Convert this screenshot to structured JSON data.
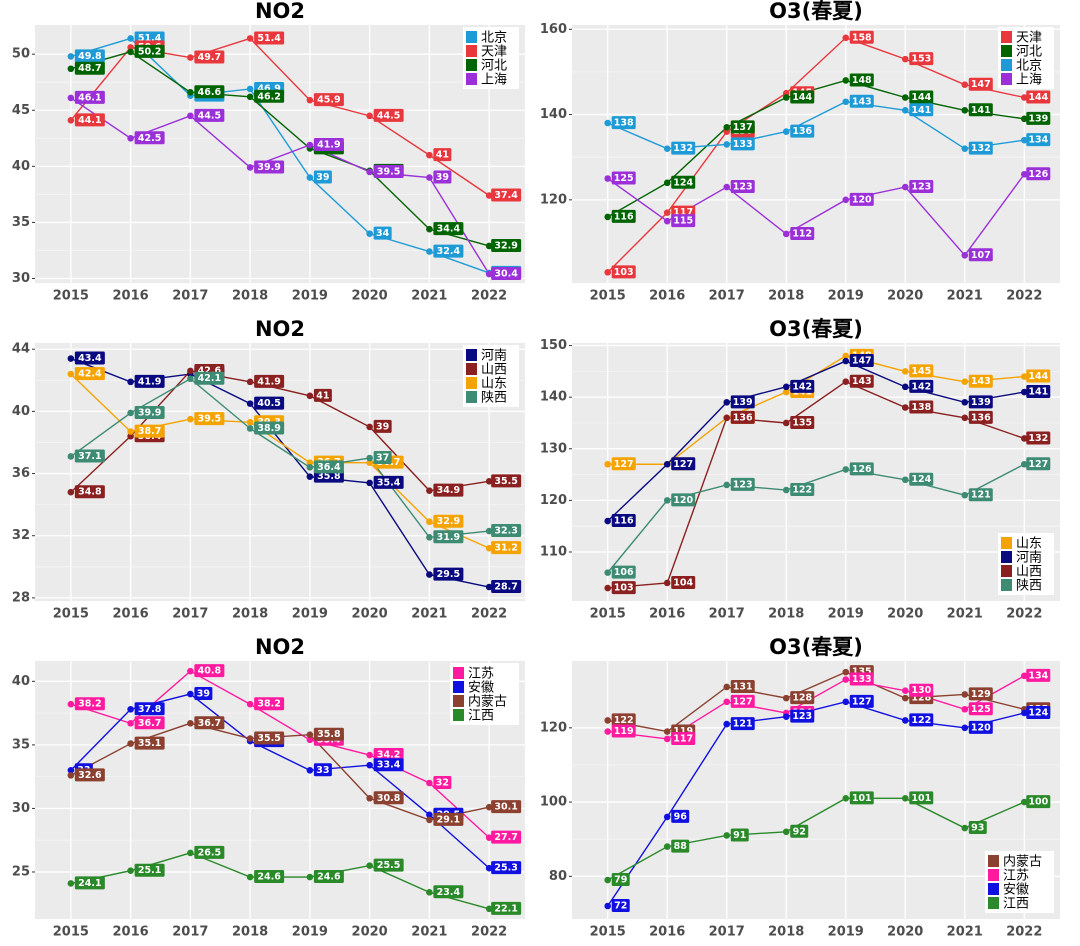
{
  "chart_data": [
    {
      "type": "line",
      "title": "NO2",
      "categories": [
        "2015",
        "2016",
        "2017",
        "2018",
        "2019",
        "2020",
        "2021",
        "2022"
      ],
      "series": [
        {
          "name": "北京",
          "color": "#1e9bd7",
          "values": [
            49.8,
            51.4,
            46.3,
            46.9,
            39,
            34,
            32.4,
            30.5
          ]
        },
        {
          "name": "天津",
          "color": "#e8383d",
          "values": [
            44.1,
            50.6,
            49.7,
            51.4,
            45.9,
            44.5,
            41,
            37.4
          ]
        },
        {
          "name": "河北",
          "color": "#006400",
          "values": [
            48.7,
            50.2,
            46.6,
            46.2,
            41.6,
            39.6,
            34.4,
            32.9
          ]
        },
        {
          "name": "上海",
          "color": "#9b30d9",
          "values": [
            46.1,
            42.5,
            44.5,
            39.9,
            41.9,
            39.5,
            39,
            30.4
          ]
        }
      ],
      "ylim": [
        29.6,
        52.6
      ],
      "yticks": [
        30,
        35,
        40,
        45,
        50
      ],
      "grid": true,
      "legend": "top-right"
    },
    {
      "type": "line",
      "title": "O3(春夏)",
      "categories": [
        "2015",
        "2016",
        "2017",
        "2018",
        "2019",
        "2020",
        "2021",
        "2022"
      ],
      "series": [
        {
          "name": "天津",
          "color": "#e8383d",
          "values": [
            103,
            117,
            136,
            145,
            158,
            153,
            147,
            144
          ]
        },
        {
          "name": "河北",
          "color": "#006400",
          "values": [
            116,
            124,
            137,
            144,
            148,
            144,
            141,
            139
          ]
        },
        {
          "name": "北京",
          "color": "#1e9bd7",
          "values": [
            138,
            132,
            133,
            136,
            143,
            141,
            132,
            134
          ]
        },
        {
          "name": "上海",
          "color": "#9b30d9",
          "values": [
            125,
            115,
            123,
            112,
            120,
            123,
            107,
            126
          ]
        }
      ],
      "ylim": [
        100.5,
        161
      ],
      "yticks": [
        120,
        140,
        160
      ],
      "grid": true,
      "legend": "top-right"
    },
    {
      "type": "line",
      "title": "NO2",
      "categories": [
        "2015",
        "2016",
        "2017",
        "2018",
        "2019",
        "2020",
        "2021",
        "2022"
      ],
      "series": [
        {
          "name": "河南",
          "color": "#0a0a80",
          "values": [
            43.4,
            41.9,
            42.4,
            40.5,
            35.8,
            35.4,
            29.5,
            28.7
          ]
        },
        {
          "name": "山西",
          "color": "#8b2020",
          "values": [
            34.8,
            38.4,
            42.6,
            41.9,
            41,
            39,
            34.9,
            35.5
          ]
        },
        {
          "name": "山东",
          "color": "#f5a300",
          "values": [
            42.4,
            38.7,
            39.5,
            39.3,
            36.7,
            36.7,
            32.9,
            31.2
          ]
        },
        {
          "name": "陕西",
          "color": "#3d8b73",
          "values": [
            37.1,
            39.9,
            42.1,
            38.9,
            36.4,
            37,
            31.9,
            32.3
          ]
        }
      ],
      "ylim": [
        27.8,
        44.4
      ],
      "yticks": [
        28,
        32,
        36,
        40,
        44
      ],
      "grid": true,
      "legend": "top-right"
    },
    {
      "type": "line",
      "title": "O3(春夏)",
      "categories": [
        "2015",
        "2016",
        "2017",
        "2018",
        "2019",
        "2020",
        "2021",
        "2022"
      ],
      "series": [
        {
          "name": "山东",
          "color": "#f5a300",
          "values": [
            127,
            127,
            136,
            141,
            148,
            145,
            143,
            144
          ]
        },
        {
          "name": "河南",
          "color": "#0a0a80",
          "values": [
            116,
            127,
            139,
            142,
            147,
            142,
            139,
            141
          ]
        },
        {
          "name": "山西",
          "color": "#8b2020",
          "values": [
            103,
            104,
            136,
            135,
            143,
            138,
            136,
            132
          ]
        },
        {
          "name": "陕西",
          "color": "#3d8b73",
          "values": [
            106,
            120,
            123,
            122,
            126,
            124,
            121,
            127
          ]
        }
      ],
      "ylim": [
        100.5,
        150.5
      ],
      "yticks": [
        110,
        120,
        130,
        140,
        150
      ],
      "grid": true,
      "legend": "bottom-right"
    },
    {
      "type": "line",
      "title": "NO2",
      "categories": [
        "2015",
        "2016",
        "2017",
        "2018",
        "2019",
        "2020",
        "2021",
        "2022"
      ],
      "series": [
        {
          "name": "江苏",
          "color": "#ff1aa0",
          "values": [
            38.2,
            36.7,
            40.8,
            38.2,
            35.4,
            34.2,
            32,
            27.7
          ]
        },
        {
          "name": "安徽",
          "color": "#1010e0",
          "values": [
            33,
            37.8,
            39,
            35.3,
            33,
            33.4,
            29.5,
            25.3
          ]
        },
        {
          "name": "内蒙古",
          "color": "#8b4030",
          "values": [
            32.6,
            35.1,
            36.7,
            35.5,
            35.8,
            30.8,
            29.1,
            30.1
          ]
        },
        {
          "name": "江西",
          "color": "#2a8a2a",
          "values": [
            24.1,
            25.1,
            26.5,
            24.6,
            24.6,
            25.5,
            23.4,
            22.1
          ]
        }
      ],
      "ylim": [
        21.3,
        41.6
      ],
      "yticks": [
        25,
        30,
        35,
        40
      ],
      "grid": true,
      "legend": "top-right"
    },
    {
      "type": "line",
      "title": "O3(春夏)",
      "categories": [
        "2015",
        "2016",
        "2017",
        "2018",
        "2019",
        "2020",
        "2021",
        "2022"
      ],
      "series": [
        {
          "name": "内蒙古",
          "color": "#8b4030",
          "values": [
            122,
            119,
            131,
            128,
            135,
            128,
            129,
            125
          ]
        },
        {
          "name": "江苏",
          "color": "#ff1aa0",
          "values": [
            119,
            117,
            127,
            124,
            133,
            130,
            125,
            134
          ]
        },
        {
          "name": "安徽",
          "color": "#1010e0",
          "values": [
            72,
            96,
            121,
            123,
            127,
            122,
            120,
            124
          ]
        },
        {
          "name": "江西",
          "color": "#2a8a2a",
          "values": [
            79,
            88,
            91,
            92,
            101,
            101,
            93,
            100
          ]
        }
      ],
      "ylim": [
        68.5,
        138
      ],
      "yticks": [
        80,
        100,
        120
      ],
      "grid": true,
      "legend": "bottom-right"
    }
  ]
}
